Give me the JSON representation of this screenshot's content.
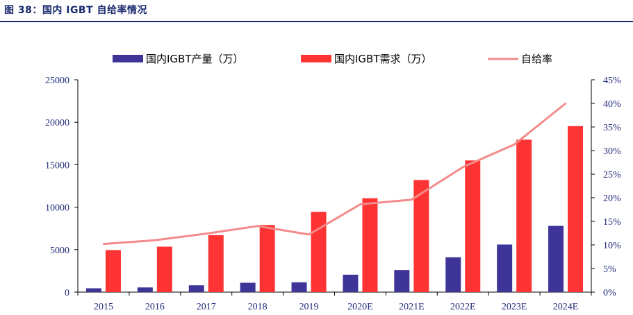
{
  "figure_title": "图 38：国内 IGBT 自给率情况",
  "colors": {
    "production": "#3f3599",
    "demand": "#fe3334",
    "rate": "#f58a8a",
    "axis": "#1f2a7a"
  },
  "chart_data": {
    "type": "bar",
    "title": "",
    "categories": [
      "2015",
      "2016",
      "2017",
      "2018",
      "2019",
      "2020E",
      "2021E",
      "2022E",
      "2023E",
      "2024E"
    ],
    "series": [
      {
        "name": "国内IGBT产量（万）",
        "type": "bar",
        "axis": "left",
        "values": [
          450,
          550,
          800,
          1100,
          1150,
          2050,
          2600,
          4100,
          5600,
          7800
        ]
      },
      {
        "name": "国内IGBT需求（万）",
        "type": "bar",
        "axis": "left",
        "values": [
          4950,
          5350,
          6700,
          7900,
          9450,
          11050,
          13200,
          15500,
          17950,
          19550
        ]
      },
      {
        "name": "自给率",
        "type": "line",
        "axis": "right",
        "values": [
          0.102,
          0.11,
          0.124,
          0.14,
          0.122,
          0.186,
          0.196,
          0.265,
          0.313,
          0.4
        ]
      }
    ],
    "ylim": [
      0,
      25000
    ],
    "yticks": [
      "0",
      "5000",
      "10000",
      "15000",
      "20000",
      "25000"
    ],
    "y2lim": [
      0,
      0.45
    ],
    "y2ticks": [
      "0%",
      "5%",
      "10%",
      "15%",
      "20%",
      "25%",
      "30%",
      "35%",
      "40%",
      "45%"
    ],
    "legend_position": "top",
    "grid": false
  }
}
